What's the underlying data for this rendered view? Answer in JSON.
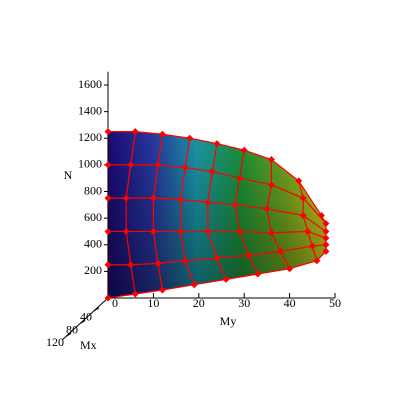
{
  "chart_data": {
    "type": "surface3d",
    "axis_labels": {
      "n": "N",
      "my": "My",
      "mx": "Mx"
    },
    "nlim": [
      0,
      1700
    ],
    "nticks": [
      200,
      400,
      600,
      800,
      1000,
      1200,
      1400,
      1600
    ],
    "mylim": [
      0,
      50
    ],
    "myticks": [
      0,
      10,
      20,
      30,
      40,
      50
    ],
    "mxlim": [
      0,
      130
    ],
    "mxticks": [
      40,
      80,
      120
    ],
    "marker_color": "#ff0000",
    "curves": [
      {
        "My": [
          0,
          0,
          0,
          0,
          0,
          0
        ],
        "N": [
          1250,
          1000,
          750,
          500,
          250,
          0
        ]
      },
      {
        "My": [
          6,
          5,
          4,
          4,
          5,
          6
        ],
        "N": [
          1250,
          1000,
          750,
          500,
          250,
          30
        ]
      },
      {
        "My": [
          12,
          11,
          10,
          10,
          11,
          12
        ],
        "N": [
          1230,
          1000,
          750,
          500,
          260,
          60
        ]
      },
      {
        "My": [
          18,
          17,
          16,
          16,
          17,
          19
        ],
        "N": [
          1200,
          980,
          740,
          500,
          280,
          100
        ]
      },
      {
        "My": [
          24,
          23,
          22,
          22,
          24,
          26
        ],
        "N": [
          1160,
          950,
          720,
          500,
          300,
          140
        ]
      },
      {
        "My": [
          30,
          29,
          28,
          29,
          31,
          33
        ],
        "N": [
          1110,
          900,
          700,
          500,
          320,
          180
        ]
      },
      {
        "My": [
          36,
          36,
          35,
          36,
          38,
          40
        ],
        "N": [
          1040,
          850,
          670,
          490,
          350,
          220
        ]
      },
      {
        "My": [
          42,
          43,
          43,
          44,
          45,
          46
        ],
        "N": [
          880,
          750,
          620,
          500,
          390,
          280
        ]
      },
      {
        "My": [
          47,
          48,
          48,
          48,
          48,
          48
        ],
        "N": [
          620,
          560,
          500,
          450,
          400,
          350
        ]
      }
    ]
  }
}
